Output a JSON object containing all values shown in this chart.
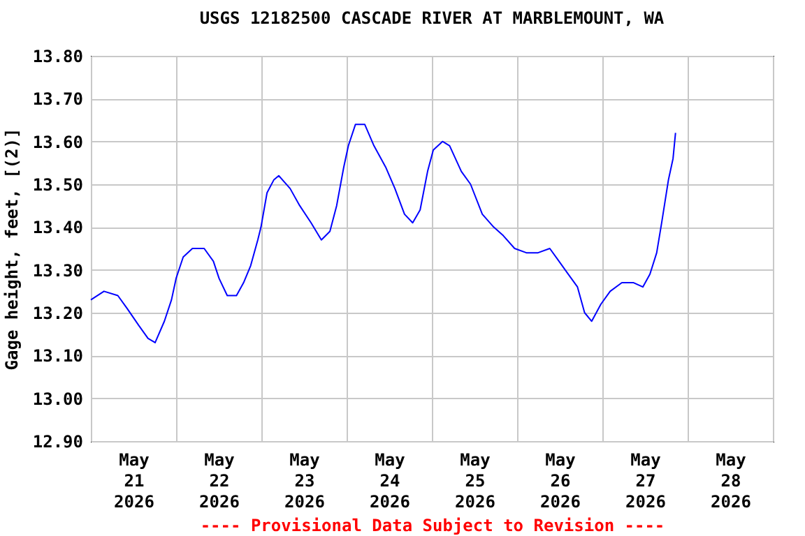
{
  "chart_data": {
    "type": "line",
    "title": "USGS 12182500 CASCADE RIVER AT MARBLEMOUNT, WA",
    "ylabel": "Gage height, feet, [(2)]",
    "annotations": [
      "---- Provisional Data Subject to Revision ----"
    ],
    "x": [
      "2026-05-21T00:00",
      "2026-05-21T03:42",
      "2026-05-21T07:36",
      "2026-05-21T10:12",
      "2026-05-21T13:30",
      "2026-05-21T16:06",
      "2026-05-21T18:06",
      "2026-05-21T20:42",
      "2026-05-21T22:42",
      "2026-05-22T00:00",
      "2026-05-22T02:00",
      "2026-05-22T04:36",
      "2026-05-22T07:54",
      "2026-05-22T10:30",
      "2026-05-22T12:06",
      "2026-05-22T14:24",
      "2026-05-22T17:00",
      "2026-05-22T19:00",
      "2026-05-22T21:00",
      "2026-05-22T23:00",
      "2026-05-22T23:54",
      "2026-05-23T01:36",
      "2026-05-23T03:30",
      "2026-05-23T04:54",
      "2026-05-23T08:06",
      "2026-05-23T10:48",
      "2026-05-23T14:00",
      "2026-05-23T16:54",
      "2026-05-23T19:18",
      "2026-05-23T21:12",
      "2026-05-23T23:12",
      "2026-05-24T00:30",
      "2026-05-24T02:30",
      "2026-05-24T05:06",
      "2026-05-24T07:42",
      "2026-05-24T11:00",
      "2026-05-24T13:36",
      "2026-05-24T16:18",
      "2026-05-24T18:36",
      "2026-05-24T20:42",
      "2026-05-24T22:48",
      "2026-05-25T00:24",
      "2026-05-25T03:00",
      "2026-05-25T05:00",
      "2026-05-25T08:18",
      "2026-05-25T10:54",
      "2026-05-25T14:12",
      "2026-05-25T17:24",
      "2026-05-25T20:06",
      "2026-05-25T23:18",
      "2026-05-26T02:36",
      "2026-05-26T05:54",
      "2026-05-26T09:12",
      "2026-05-26T11:48",
      "2026-05-26T14:24",
      "2026-05-26T17:00",
      "2026-05-26T19:00",
      "2026-05-26T21:00",
      "2026-05-26T23:36",
      "2026-05-27T02:12",
      "2026-05-27T05:30",
      "2026-05-27T08:48",
      "2026-05-27T11:24",
      "2026-05-27T13:24",
      "2026-05-27T15:18",
      "2026-05-27T16:42",
      "2026-05-27T18:36",
      "2026-05-27T19:54",
      "2026-05-27T20:36"
    ],
    "series": [
      {
        "color": "#0000ff",
        "values": [
          13.23,
          13.25,
          13.24,
          13.21,
          13.17,
          13.14,
          13.13,
          13.18,
          13.23,
          13.28,
          13.33,
          13.35,
          13.35,
          13.32,
          13.28,
          13.24,
          13.24,
          13.27,
          13.31,
          13.37,
          13.4,
          13.48,
          13.51,
          13.52,
          13.49,
          13.45,
          13.41,
          13.37,
          13.39,
          13.45,
          13.54,
          13.59,
          13.64,
          13.64,
          13.59,
          13.54,
          13.49,
          13.43,
          13.41,
          13.44,
          13.53,
          13.58,
          13.6,
          13.59,
          13.53,
          13.5,
          13.43,
          13.4,
          13.38,
          13.35,
          13.34,
          13.34,
          13.35,
          13.32,
          13.29,
          13.26,
          13.2,
          13.18,
          13.22,
          13.25,
          13.27,
          13.27,
          13.26,
          13.29,
          13.34,
          13.41,
          13.51,
          13.56,
          13.62
        ]
      }
    ],
    "xlim": [
      "2026-05-21T00:00",
      "2026-05-29T00:00"
    ],
    "xticks": [
      {
        "value": "2026-05-21T00:00",
        "label": null
      },
      {
        "value": "2026-05-21T12:00",
        "label": "May 21 2026"
      },
      {
        "value": "2026-05-22T00:00",
        "label": null
      },
      {
        "value": "2026-05-22T12:00",
        "label": "May 22 2026"
      },
      {
        "value": "2026-05-23T00:00",
        "label": null
      },
      {
        "value": "2026-05-23T12:00",
        "label": "May 23 2026"
      },
      {
        "value": "2026-05-24T00:00",
        "label": null
      },
      {
        "value": "2026-05-24T12:00",
        "label": "May 24 2026"
      },
      {
        "value": "2026-05-25T00:00",
        "label": null
      },
      {
        "value": "2026-05-25T12:00",
        "label": "May 25 2026"
      },
      {
        "value": "2026-05-26T00:00",
        "label": null
      },
      {
        "value": "2026-05-26T12:00",
        "label": "May 26 2026"
      },
      {
        "value": "2026-05-27T00:00",
        "label": null
      },
      {
        "value": "2026-05-27T12:00",
        "label": "May 27 2026"
      },
      {
        "value": "2026-05-28T00:00",
        "label": null
      },
      {
        "value": "2026-05-28T12:00",
        "label": "May 28 2026"
      },
      {
        "value": "2026-05-29T00:00",
        "label": null
      }
    ],
    "ylim": [
      12.9,
      13.8
    ],
    "yticks": [
      {
        "value": 12.9,
        "label": "12.90"
      },
      {
        "value": 13.0,
        "label": "13.00"
      },
      {
        "value": 13.1,
        "label": "13.10"
      },
      {
        "value": 13.2,
        "label": "13.20"
      },
      {
        "value": 13.3,
        "label": "13.30"
      },
      {
        "value": 13.4,
        "label": "13.40"
      },
      {
        "value": 13.5,
        "label": "13.50"
      },
      {
        "value": 13.6,
        "label": "13.60"
      },
      {
        "value": 13.7,
        "label": "13.70"
      },
      {
        "value": 13.8,
        "label": "13.80"
      }
    ],
    "grid": true,
    "legend": false,
    "marker": "none",
    "line_style": "solid"
  }
}
